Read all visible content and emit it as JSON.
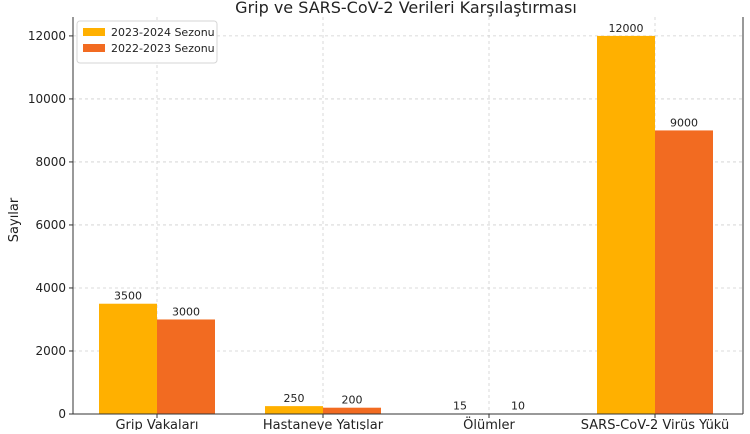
{
  "chart_data": {
    "type": "bar",
    "title": "Grip ve SARS-CoV-2 Verileri Karşılaştırması",
    "xlabel": "",
    "ylabel": "Sayılar",
    "categories": [
      "Grip Vakaları",
      "Hastaneye Yatışlar",
      "Ölümler",
      "SARS-CoV-2 Virüs Yükü"
    ],
    "series": [
      {
        "name": "2023-2024 Sezonu",
        "values": [
          3500,
          250,
          15,
          12000
        ],
        "color": "#FFB000"
      },
      {
        "name": "2022-2023 Sezonu",
        "values": [
          3000,
          200,
          10,
          9000
        ],
        "color": "#F26B21"
      }
    ],
    "ylim": [
      0,
      12600
    ],
    "yticks": [
      0,
      2000,
      4000,
      6000,
      8000,
      10000,
      12000
    ],
    "grid": true,
    "grid_style": "dashed",
    "legend_position": "top-left",
    "data_labels": true
  }
}
